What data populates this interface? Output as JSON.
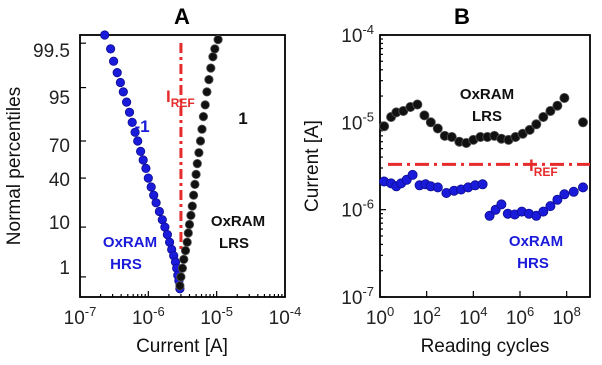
{
  "chart_data": [
    {
      "panel": "A",
      "type": "scatter",
      "title": "A",
      "xlabel": "Current [A]",
      "ylabel": "Normal percentiles",
      "xscale": "log",
      "xlim": [
        1e-07,
        0.0001
      ],
      "x_ticks": [
        1e-07,
        1e-06,
        1e-05,
        0.0001
      ],
      "x_tick_labels": [
        "10-7",
        "10-6",
        "10-5",
        "10-4"
      ],
      "y_tick_labels": [
        "99.5",
        "95",
        "70",
        "40",
        "10",
        "1"
      ],
      "ylim_percentile": [
        0.3,
        99.7
      ],
      "grid": false,
      "series": [
        {
          "name": "-1",
          "color": "#1a1adb",
          "points": [
            [
              2.3e-07,
              99.7
            ],
            [
              2.8e-07,
              99.3
            ],
            [
              3.1e-07,
              98.6
            ],
            [
              3.5e-07,
              97.5
            ],
            [
              3.9e-07,
              96.0
            ],
            [
              4.3e-07,
              94.0
            ],
            [
              4.8e-07,
              91.0
            ],
            [
              5.3e-07,
              87.0
            ],
            [
              5.8e-07,
              82.0
            ],
            [
              6.4e-07,
              76.0
            ],
            [
              7e-07,
              70.0
            ],
            [
              7.7e-07,
              62.0
            ],
            [
              8.4e-07,
              55.0
            ],
            [
              9.2e-07,
              48.0
            ],
            [
              1e-06,
              40.0
            ],
            [
              1.1e-06,
              33.0
            ],
            [
              1.2e-06,
              27.0
            ],
            [
              1.3e-06,
              22.0
            ],
            [
              1.45e-06,
              17.0
            ],
            [
              1.6e-06,
              13.0
            ],
            [
              1.75e-06,
              10.0
            ],
            [
              1.9e-06,
              7.5
            ],
            [
              2.05e-06,
              5.5
            ],
            [
              2.2e-06,
              4.0
            ],
            [
              2.35e-06,
              3.0
            ],
            [
              2.5e-06,
              2.2
            ],
            [
              2.6e-06,
              1.6
            ],
            [
              2.7e-06,
              1.1
            ],
            [
              2.8e-06,
              0.8
            ],
            [
              2.9e-06,
              0.5
            ]
          ]
        },
        {
          "name": "1",
          "color": "#111111",
          "points": [
            [
              2.9e-06,
              0.6
            ],
            [
              3e-06,
              1.0
            ],
            [
              3.15e-06,
              1.6
            ],
            [
              3.3e-06,
              2.5
            ],
            [
              3.5e-06,
              3.8
            ],
            [
              3.7e-06,
              5.5
            ],
            [
              3.85e-06,
              8.0
            ],
            [
              4e-06,
              11.0
            ],
            [
              4.2e-06,
              15.0
            ],
            [
              4.4e-06,
              20.0
            ],
            [
              4.6e-06,
              27.0
            ],
            [
              4.8e-06,
              35.0
            ],
            [
              5e-06,
              43.0
            ],
            [
              5.2e-06,
              52.0
            ],
            [
              5.5e-06,
              61.0
            ],
            [
              5.8e-06,
              70.0
            ],
            [
              6.1e-06,
              78.0
            ],
            [
              6.4e-06,
              85.0
            ],
            [
              6.8e-06,
              90.0
            ],
            [
              7.2e-06,
              94.0
            ],
            [
              7.7e-06,
              96.5
            ],
            [
              8.2e-06,
              98.0
            ],
            [
              8.8e-06,
              98.9
            ],
            [
              9.4e-06,
              99.3
            ],
            [
              1.05e-05,
              99.6
            ]
          ]
        }
      ],
      "reference_line": {
        "label": "I",
        "label_sub": "REF",
        "x": 3e-06,
        "color": "#e52b2b",
        "style": "dash-dot"
      },
      "annotations": [
        {
          "text_lines": [
            "OxRAM",
            "HRS"
          ],
          "color": "#1a1adb"
        },
        {
          "text_lines": [
            "OxRAM",
            "LRS"
          ],
          "color": "#111111"
        }
      ]
    },
    {
      "panel": "B",
      "type": "scatter",
      "title": "B",
      "xlabel": "Reading cycles",
      "ylabel": "Current [A]",
      "xscale": "log",
      "yscale": "log",
      "xlim": [
        1,
        1000000000.0
      ],
      "ylim": [
        1e-07,
        0.0001
      ],
      "x_ticks": [
        1,
        100.0,
        10000.0,
        1000000.0,
        100000000.0
      ],
      "x_tick_labels": [
        "10",
        "10",
        "10",
        "10",
        "10"
      ],
      "x_tick_exponents": [
        "0",
        "2",
        "4",
        "6",
        "8"
      ],
      "y_ticks": [
        1e-07,
        1e-06,
        1e-05,
        0.0001
      ],
      "y_tick_labels": [
        "10-7",
        "10-6",
        "10-5",
        "10-4"
      ],
      "grid": false,
      "series": [
        {
          "name": "OxRAM LRS",
          "color": "#111111",
          "points": [
            [
              1.5,
              9e-06
            ],
            [
              3,
              1.15e-05
            ],
            [
              5,
              1.3e-05
            ],
            [
              10,
              1.35e-05
            ],
            [
              20,
              1.5e-05
            ],
            [
              40,
              1.6e-05
            ],
            [
              80,
              1.2e-05
            ],
            [
              150,
              1e-05
            ],
            [
              300,
              8.5e-06
            ],
            [
              600,
              7e-06
            ],
            [
              1200,
              6.8e-06
            ],
            [
              2500,
              6e-06
            ],
            [
              5000,
              5.8e-06
            ],
            [
              10000.0,
              6.3e-06
            ],
            [
              20000.0,
              6.8e-06
            ],
            [
              40000.0,
              6.8e-06
            ],
            [
              80000.0,
              7e-06
            ],
            [
              160000.0,
              6.5e-06
            ],
            [
              320000.0,
              6.3e-06
            ],
            [
              640000.0,
              6.8e-06
            ],
            [
              1300000.0,
              7.4e-06
            ],
            [
              2600000.0,
              8.2e-06
            ],
            [
              5000000.0,
              9.5e-06
            ],
            [
              10000000.0,
              1.15e-05
            ],
            [
              20000000.0,
              1.35e-05
            ],
            [
              40000000.0,
              1.55e-05
            ],
            [
              80000000.0,
              1.9e-05
            ],
            [
              500000000.0,
              1e-05
            ]
          ]
        },
        {
          "name": "OxRAM HRS",
          "color": "#1a1adb",
          "points": [
            [
              1.5,
              2.1e-06
            ],
            [
              3,
              2e-06
            ],
            [
              5,
              1.85e-06
            ],
            [
              8,
              2e-06
            ],
            [
              14,
              2.2e-06
            ],
            [
              25,
              2.5e-06
            ],
            [
              50,
              1.9e-06
            ],
            [
              90,
              1.95e-06
            ],
            [
              150,
              1.85e-06
            ],
            [
              300,
              1.8e-06
            ],
            [
              700,
              1.55e-06
            ],
            [
              1500,
              1.65e-06
            ],
            [
              3000,
              1.7e-06
            ],
            [
              6000,
              1.8e-06
            ],
            [
              12000.0,
              1.9e-06
            ],
            [
              25000.0,
              1.95e-06
            ],
            [
              50000.0,
              8.5e-07
            ],
            [
              90000.0,
              1e-06
            ],
            [
              160000.0,
              1.15e-06
            ],
            [
              300000.0,
              9e-07
            ],
            [
              600000.0,
              8.8e-07
            ],
            [
              1200000.0,
              9.5e-07
            ],
            [
              2400000.0,
              9e-07
            ],
            [
              5000000.0,
              8.5e-07
            ],
            [
              10000000.0,
              9.5e-07
            ],
            [
              20000000.0,
              1.1e-06
            ],
            [
              40000000.0,
              1.3e-06
            ],
            [
              80000000.0,
              1.5e-06
            ],
            [
              200000000.0,
              1.6e-06
            ],
            [
              500000000.0,
              1.8e-06
            ]
          ]
        }
      ],
      "reference_line": {
        "label": "I",
        "label_sub": "REF",
        "y": 3.3e-06,
        "color": "#e52b2b",
        "style": "dash-dot"
      },
      "annotations": [
        {
          "text_lines": [
            "OxRAM",
            "LRS"
          ],
          "color": "#111111"
        },
        {
          "text_lines": [
            "OxRAM",
            "HRS"
          ],
          "color": "#1a1adb"
        }
      ]
    }
  ]
}
